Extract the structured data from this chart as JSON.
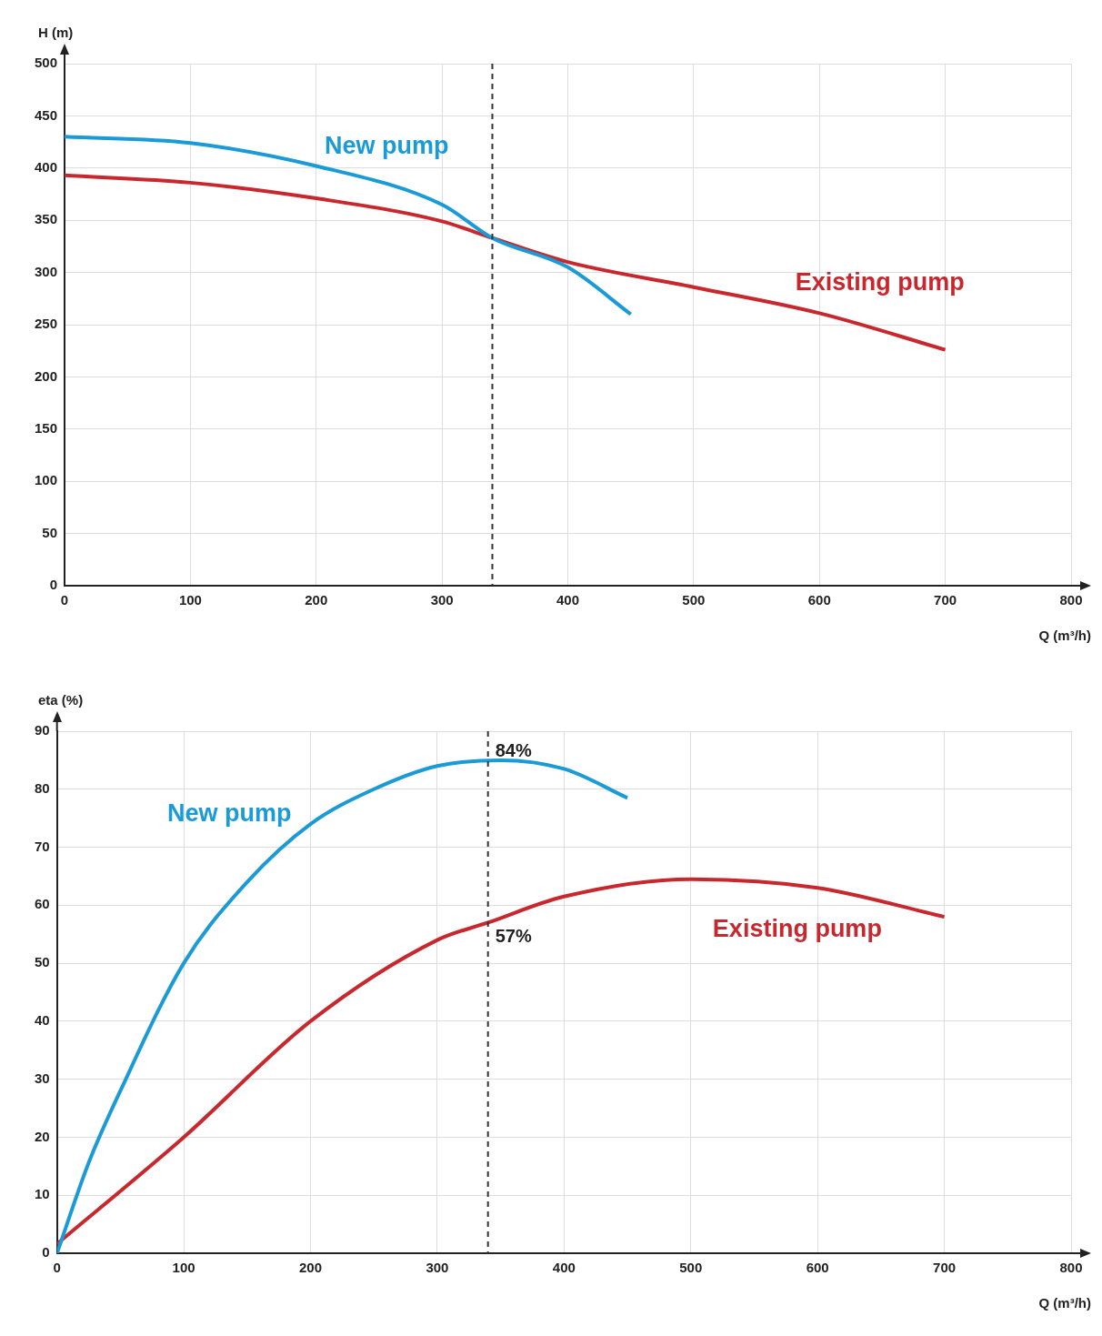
{
  "chart_data": [
    {
      "type": "line",
      "xlabel": "Q (m³/h)",
      "ylabel": "H (m)",
      "xlim": [
        0,
        800
      ],
      "xticks": [
        0,
        100,
        200,
        300,
        400,
        500,
        600,
        700,
        800
      ],
      "ylim": [
        0,
        500
      ],
      "yticks": [
        0,
        50,
        100,
        150,
        200,
        250,
        300,
        350,
        400,
        450,
        500
      ],
      "grid": true,
      "legend": false,
      "series": [
        {
          "name": "New pump",
          "color": "#1a9ad6",
          "x": [
            0,
            100,
            200,
            300,
            340,
            400,
            450
          ],
          "values": [
            430,
            424,
            402,
            365,
            333,
            305,
            260
          ]
        },
        {
          "name": "Existing pump",
          "color": "#c8282d",
          "x": [
            0,
            100,
            200,
            300,
            340,
            400,
            500,
            600,
            700
          ],
          "values": [
            393,
            386,
            371,
            349,
            333,
            310,
            286,
            261,
            226
          ]
        }
      ],
      "ref_lines": [
        {
          "axis": "x",
          "value": 340,
          "color": "#333333",
          "line_style": "dashed"
        }
      ]
    },
    {
      "type": "line",
      "xlabel": "Q (m³/h)",
      "ylabel": "eta (%)",
      "xlim": [
        0,
        800
      ],
      "xticks": [
        0,
        100,
        200,
        300,
        400,
        500,
        600,
        700,
        800
      ],
      "ylim": [
        0,
        90
      ],
      "yticks": [
        0,
        10,
        20,
        30,
        40,
        50,
        60,
        70,
        80,
        90
      ],
      "grid": true,
      "legend": false,
      "series": [
        {
          "name": "New pump",
          "color": "#1a9ad6",
          "x": [
            0,
            25,
            50,
            100,
            150,
            200,
            250,
            300,
            350,
            400,
            450
          ],
          "values": [
            0,
            15.6,
            28,
            50,
            64,
            74,
            80,
            84,
            85,
            83.5,
            78.5
          ]
        },
        {
          "name": "Existing pump",
          "color": "#c8282d",
          "x": [
            0,
            100,
            200,
            300,
            340,
            400,
            500,
            600,
            700
          ],
          "values": [
            1.6,
            20,
            40,
            54,
            57,
            61.5,
            64.5,
            63,
            58
          ]
        }
      ],
      "ref_lines": [
        {
          "axis": "x",
          "value": 340,
          "color": "#333333",
          "line_style": "dashed"
        }
      ],
      "annotations": [
        {
          "text": "84%",
          "x": 340,
          "y": 84
        },
        {
          "text": "57%",
          "x": 340,
          "y": 57
        }
      ]
    }
  ]
}
